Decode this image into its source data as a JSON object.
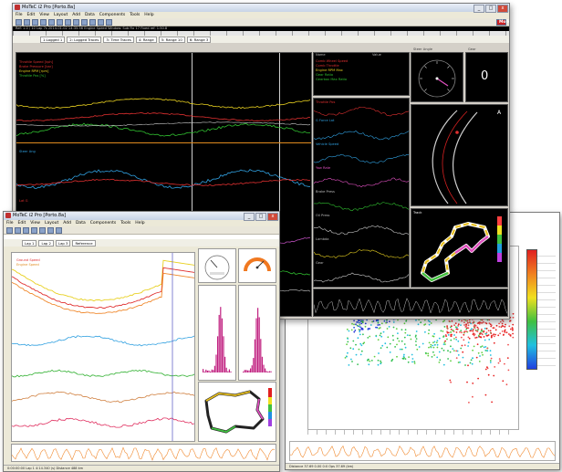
{
  "window_top": {
    "title": "MoTeC i2 Pro [Porto.8a]",
    "menu": [
      "File",
      "Edit",
      "View",
      "Layout",
      "Add",
      "Data",
      "Components",
      "Tools",
      "Help"
    ],
    "brand": "MoTeC",
    "info": "Ref: 1.0 / 10 Lap 7s  2014-01-02  14:35:56  Engine Speed  Window: Sub Fix 17  Fixed ref: 1:50.8",
    "tabs": [
      "1:Logged 1",
      "2: Logged Traces",
      "3: Time Traces",
      "4: Range",
      "5: Range 10",
      "6: Range 3"
    ],
    "channels_top": [
      "Throttle Speed [kph]",
      "Brake Pressure [bar]",
      "Engine RPM [rpm]",
      "Throttle Pos [%]"
    ],
    "channel_mid": "Steer Ang",
    "channel_mid2": "Lat G",
    "table_headers": [
      "Name",
      "Value"
    ],
    "table_rows": [
      "Comb Wheel Speed",
      "Comb Throttle",
      "Engine RPM Max",
      "Gear Ratio",
      "Gearbox Max Ratio"
    ],
    "gauge_title": "Steer Angle",
    "digit_title": "Gear",
    "digit_value": "0",
    "track_title": "Track",
    "right_channels": [
      "Throttle Pos",
      "G Force Lat",
      "Vehicle Speed",
      "Yaw Rate",
      "Brake Press",
      "Oil Press",
      "Lambda",
      "Gear"
    ]
  },
  "window_left": {
    "title": "MoTeC i2 Pro [Porto.8a]",
    "menu": [
      "File",
      "Edit",
      "View",
      "Layout",
      "Add",
      "Data",
      "Components",
      "Tools",
      "Help"
    ],
    "tabs": [
      "Lap 1",
      "Lap 2",
      "Lap 3",
      "Reference"
    ],
    "channels": [
      "Ground Speed",
      "Engine Speed"
    ],
    "statusbar": "0:00:00:00      Lap 1    4:14.340 (s)    Distance    488 km"
  },
  "window_right": {
    "statusbar": "Distance   37.69  0.00     0:0 Ops   37.69 (km)"
  },
  "colors": {
    "panel_bg": "#000000",
    "window_chrome": "#d4d0c8",
    "accent_red": "#d42020",
    "orange_border": "#e08a1e",
    "blue_points": "#2a2ad8",
    "red_points": "#e82020"
  }
}
